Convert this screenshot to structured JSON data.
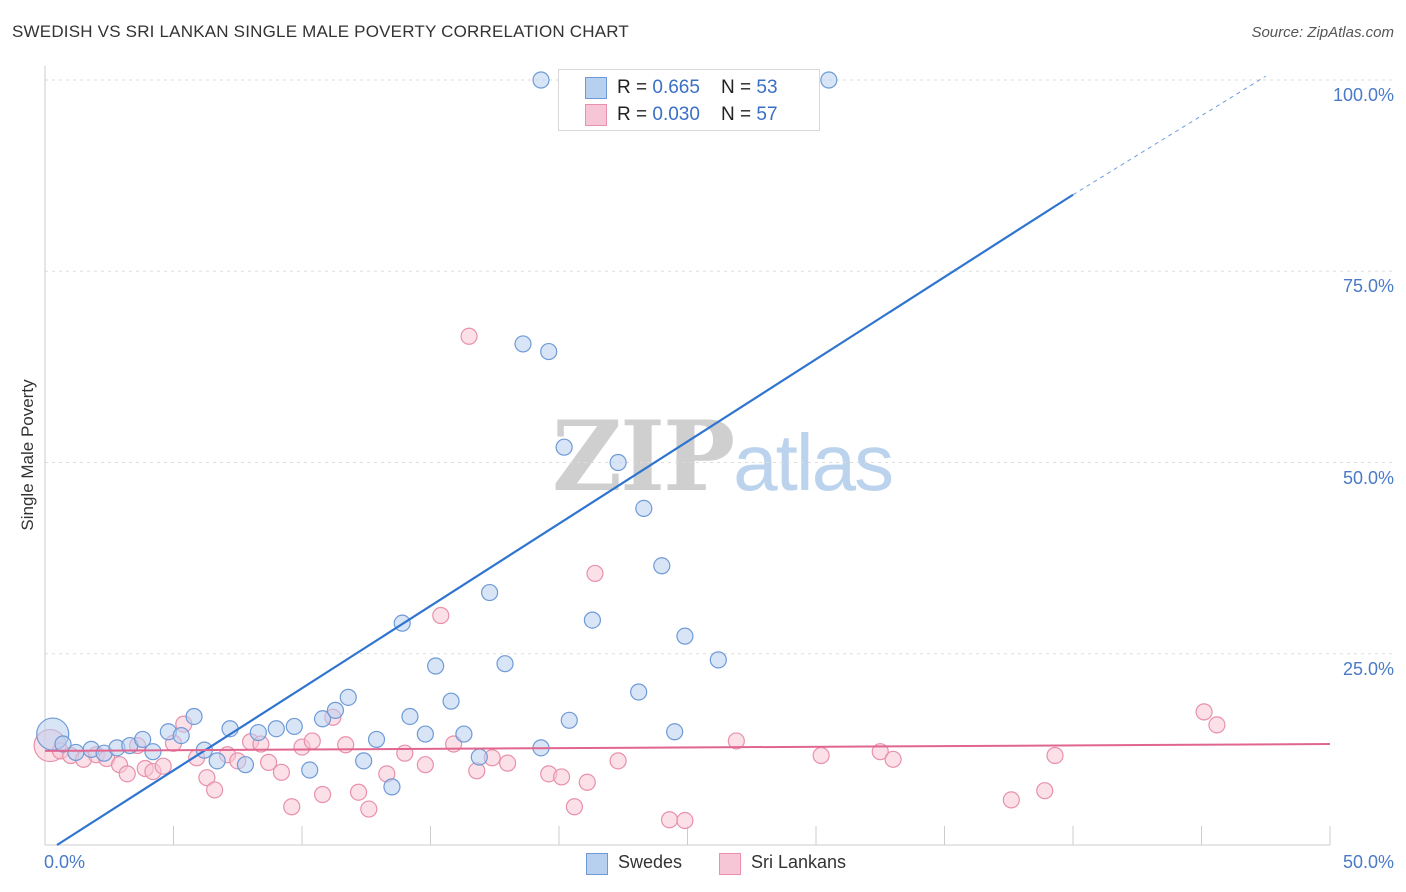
{
  "header": {
    "title": "SWEDISH VS SRI LANKAN SINGLE MALE POVERTY CORRELATION CHART",
    "source": "Source: ZipAtlas.com"
  },
  "watermark": {
    "zip": "ZIP",
    "atlas": "atlas"
  },
  "stats": {
    "swedes": {
      "r_label": "R = ",
      "r_value": "0.665",
      "n_label": "N = ",
      "n_value": "53"
    },
    "srilankans": {
      "r_label": "R = ",
      "r_value": "0.030",
      "n_label": "N = ",
      "n_value": "57"
    }
  },
  "legend": {
    "swedes": "Swedes",
    "srilankans": "Sri Lankans"
  },
  "colors": {
    "swedes_fill": "#b8d0f0",
    "swedes_stroke": "#6f9ad6",
    "swedes_line": "#2f74cf",
    "srilankans_fill": "#f7c6d6",
    "srilankans_stroke": "#e890ac",
    "srilankans_line": "#e0668f",
    "grid": "#dddddd",
    "tick_text": "#4a7ac7"
  },
  "chart_data": {
    "type": "scatter",
    "title": "SWEDISH VS SRI LANKAN SINGLE MALE POVERTY CORRELATION CHART",
    "xlabel": "",
    "ylabel": "Single Male Poverty",
    "xlim": [
      0,
      50
    ],
    "ylim": [
      0,
      100
    ],
    "x_tick_labels": [
      "0.0%",
      "50.0%"
    ],
    "y_ticks": [
      25,
      50,
      75,
      100
    ],
    "y_tick_labels": [
      "25.0%",
      "50.0%",
      "75.0%",
      "100.0%"
    ],
    "grid": true,
    "series": [
      {
        "name": "Swedes",
        "points": [
          [
            0.3,
            14.5
          ],
          [
            0.7,
            13.2
          ],
          [
            1.2,
            12.1
          ],
          [
            1.8,
            12.5
          ],
          [
            2.3,
            12.0
          ],
          [
            2.8,
            12.7
          ],
          [
            3.3,
            13.0
          ],
          [
            3.8,
            13.8
          ],
          [
            4.2,
            12.2
          ],
          [
            4.8,
            14.8
          ],
          [
            5.3,
            14.3
          ],
          [
            5.8,
            16.8
          ],
          [
            6.2,
            12.4
          ],
          [
            6.7,
            11.0
          ],
          [
            7.2,
            15.2
          ],
          [
            7.8,
            10.5
          ],
          [
            8.3,
            14.7
          ],
          [
            9.0,
            15.2
          ],
          [
            9.7,
            15.5
          ],
          [
            10.3,
            9.8
          ],
          [
            10.8,
            16.5
          ],
          [
            11.3,
            17.6
          ],
          [
            11.8,
            19.3
          ],
          [
            12.4,
            11.0
          ],
          [
            12.9,
            13.8
          ],
          [
            13.5,
            7.6
          ],
          [
            13.9,
            29.0
          ],
          [
            14.2,
            16.8
          ],
          [
            14.8,
            14.5
          ],
          [
            15.2,
            23.4
          ],
          [
            15.8,
            18.8
          ],
          [
            16.3,
            14.5
          ],
          [
            16.9,
            11.5
          ],
          [
            17.3,
            33.0
          ],
          [
            17.9,
            23.7
          ],
          [
            18.6,
            65.5
          ],
          [
            19.3,
            12.7
          ],
          [
            19.6,
            64.5
          ],
          [
            20.2,
            52.0
          ],
          [
            20.4,
            16.3
          ],
          [
            21.3,
            29.4
          ],
          [
            22.3,
            50.0
          ],
          [
            23.1,
            20.0
          ],
          [
            23.3,
            44.0
          ],
          [
            24.0,
            36.5
          ],
          [
            24.5,
            14.8
          ],
          [
            24.9,
            27.3
          ],
          [
            26.2,
            24.2
          ],
          [
            19.3,
            100.0
          ],
          [
            22.7,
            100.0
          ],
          [
            28.0,
            100.0
          ],
          [
            29.6,
            100.0
          ],
          [
            30.5,
            100.0
          ]
        ]
      },
      {
        "name": "Sri Lankans",
        "points": [
          [
            0.2,
            13.0
          ],
          [
            0.6,
            12.3
          ],
          [
            1.0,
            11.7
          ],
          [
            1.5,
            11.2
          ],
          [
            2.0,
            11.8
          ],
          [
            2.4,
            11.3
          ],
          [
            2.9,
            10.5
          ],
          [
            3.2,
            9.3
          ],
          [
            3.6,
            13.0
          ],
          [
            3.9,
            10.0
          ],
          [
            4.2,
            9.6
          ],
          [
            4.6,
            10.3
          ],
          [
            5.0,
            13.3
          ],
          [
            5.4,
            15.8
          ],
          [
            5.9,
            11.4
          ],
          [
            6.3,
            8.8
          ],
          [
            6.6,
            7.2
          ],
          [
            7.1,
            11.8
          ],
          [
            7.5,
            11.0
          ],
          [
            8.0,
            13.5
          ],
          [
            8.4,
            13.2
          ],
          [
            8.7,
            10.8
          ],
          [
            9.2,
            9.5
          ],
          [
            9.6,
            5.0
          ],
          [
            10.0,
            12.8
          ],
          [
            10.4,
            13.6
          ],
          [
            10.8,
            6.6
          ],
          [
            11.2,
            16.7
          ],
          [
            11.7,
            13.1
          ],
          [
            12.2,
            6.9
          ],
          [
            12.6,
            4.7
          ],
          [
            13.3,
            9.3
          ],
          [
            14.0,
            12.0
          ],
          [
            14.8,
            10.5
          ],
          [
            15.4,
            30.0
          ],
          [
            15.9,
            13.2
          ],
          [
            16.5,
            66.5
          ],
          [
            16.8,
            9.7
          ],
          [
            17.4,
            11.4
          ],
          [
            18.0,
            10.7
          ],
          [
            19.6,
            9.3
          ],
          [
            20.1,
            8.9
          ],
          [
            20.6,
            5.0
          ],
          [
            21.1,
            8.2
          ],
          [
            21.4,
            35.5
          ],
          [
            22.3,
            11.0
          ],
          [
            24.3,
            3.3
          ],
          [
            24.9,
            3.2
          ],
          [
            26.9,
            13.6
          ],
          [
            30.2,
            11.7
          ],
          [
            32.5,
            12.2
          ],
          [
            33.0,
            11.2
          ],
          [
            37.6,
            5.9
          ],
          [
            38.9,
            7.1
          ],
          [
            39.3,
            11.7
          ],
          [
            45.1,
            17.4
          ],
          [
            45.6,
            15.7
          ]
        ]
      }
    ],
    "trendlines": [
      {
        "series": "Swedes",
        "x0": 0,
        "y0": 0,
        "x1": 40,
        "y1": 85,
        "dashed_to_x": 47.5,
        "dashed_to_y": 100.5
      },
      {
        "series": "Sri Lankans",
        "x0": 0,
        "y0": 12.3,
        "x1": 50,
        "y1": 13.2
      }
    ]
  }
}
